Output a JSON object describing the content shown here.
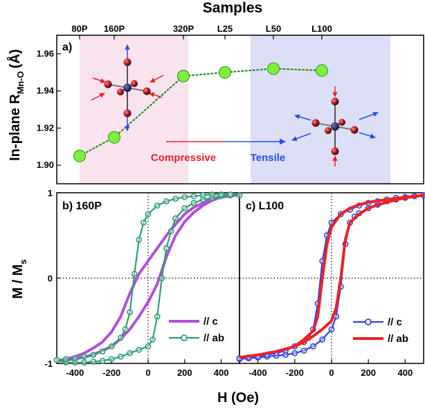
{
  "colors": {
    "compressive_region": "#f9e3ee",
    "tensile_region": "#dcdff6",
    "point_fill": "#7fef3f",
    "point_stroke": "#2f8f1f",
    "trend_line": "#2a8a2a",
    "purple": "#b050d8",
    "teal": "#2e9d72",
    "blue": "#3340e8",
    "red": "#ee2222",
    "compressive_text": "#e8202e",
    "tensile_text": "#2a4ae8",
    "atom_center": "#1d2a5a",
    "atom_outer": "#c0202a"
  },
  "chart_data": [
    {
      "id": "a",
      "type": "scatter",
      "panel_label": "a)",
      "title": "Samples",
      "ylabel_main": "In-plane R",
      "ylabel_sub": "Mn-O",
      "ylabel_unit": "(Å)",
      "categories": [
        "80P",
        "160P",
        "320P",
        "L25",
        "L50",
        "L100"
      ],
      "x_plot": [
        0.5,
        1.0,
        2.0,
        2.6,
        3.3,
        4.0
      ],
      "values": [
        1.905,
        1.915,
        1.948,
        1.95,
        1.952,
        1.951
      ],
      "ylim": [
        1.89,
        1.97
      ],
      "yticks": [
        "1.90",
        "1.92",
        "1.94",
        "1.96"
      ],
      "ytick_values": [
        1.9,
        1.92,
        1.94,
        1.96
      ],
      "compressive_label": "Compressive",
      "tensile_label": "Tensile"
    },
    {
      "id": "b",
      "type": "line",
      "panel_label": "b) 160P",
      "xlabel": "H (Oe)",
      "ylabel_main": "M / M",
      "ylabel_sub": "s",
      "xlim": [
        -500,
        500
      ],
      "ylim": [
        -1,
        1
      ],
      "xticks": [
        "-400",
        "-200",
        "0",
        "200",
        "400"
      ],
      "xtick_values": [
        -400,
        -200,
        0,
        200,
        400
      ],
      "yticks": [
        "-1",
        "0",
        "1"
      ],
      "ytick_values": [
        -1,
        0,
        1
      ],
      "series": [
        {
          "name": "// c",
          "marker": "none",
          "branch_up": [
            [
              -500,
              -0.97
            ],
            [
              -400,
              -0.95
            ],
            [
              -300,
              -0.9
            ],
            [
              -200,
              -0.8
            ],
            [
              -150,
              -0.71
            ],
            [
              -100,
              -0.6
            ],
            [
              -50,
              -0.45
            ],
            [
              0,
              -0.28
            ],
            [
              50,
              -0.07
            ],
            [
              100,
              0.25
            ],
            [
              150,
              0.5
            ],
            [
              200,
              0.66
            ],
            [
              250,
              0.77
            ],
            [
              300,
              0.85
            ],
            [
              350,
              0.91
            ],
            [
              400,
              0.95
            ],
            [
              450,
              0.97
            ],
            [
              500,
              0.98
            ]
          ],
          "branch_down": [
            [
              500,
              0.98
            ],
            [
              450,
              0.96
            ],
            [
              400,
              0.95
            ],
            [
              350,
              0.93
            ],
            [
              300,
              0.88
            ],
            [
              250,
              0.83
            ],
            [
              200,
              0.75
            ],
            [
              150,
              0.63
            ],
            [
              100,
              0.5
            ],
            [
              50,
              0.35
            ],
            [
              0,
              0.2
            ],
            [
              -50,
              0.05
            ],
            [
              -100,
              -0.18
            ],
            [
              -150,
              -0.45
            ],
            [
              -200,
              -0.63
            ],
            [
              -250,
              -0.75
            ],
            [
              -300,
              -0.82
            ],
            [
              -350,
              -0.88
            ],
            [
              -400,
              -0.92
            ],
            [
              -450,
              -0.95
            ],
            [
              -500,
              -0.97
            ]
          ]
        },
        {
          "name": "// ab",
          "marker": "circle",
          "branch_up": [
            [
              -500,
              -0.96
            ],
            [
              -450,
              -0.99
            ],
            [
              -400,
              -0.99
            ],
            [
              -350,
              -0.99
            ],
            [
              -300,
              -0.98
            ],
            [
              -250,
              -0.97
            ],
            [
              -200,
              -0.95
            ],
            [
              -150,
              -0.92
            ],
            [
              -100,
              -0.88
            ],
            [
              -50,
              -0.84
            ],
            [
              0,
              -0.8
            ],
            [
              25,
              -0.72
            ],
            [
              50,
              -0.45
            ],
            [
              75,
              0.0
            ],
            [
              100,
              0.35
            ],
            [
              125,
              0.55
            ],
            [
              150,
              0.7
            ],
            [
              200,
              0.82
            ],
            [
              250,
              0.88
            ],
            [
              300,
              0.92
            ],
            [
              350,
              0.94
            ],
            [
              400,
              0.96
            ],
            [
              450,
              0.97
            ],
            [
              500,
              0.97
            ]
          ],
          "branch_down": [
            [
              500,
              0.97
            ],
            [
              450,
              0.98
            ],
            [
              400,
              0.98
            ],
            [
              350,
              0.98
            ],
            [
              300,
              0.97
            ],
            [
              250,
              0.96
            ],
            [
              200,
              0.95
            ],
            [
              150,
              0.93
            ],
            [
              100,
              0.9
            ],
            [
              50,
              0.85
            ],
            [
              0,
              0.75
            ],
            [
              -25,
              0.65
            ],
            [
              -50,
              0.45
            ],
            [
              -75,
              0.05
            ],
            [
              -100,
              -0.4
            ],
            [
              -125,
              -0.6
            ],
            [
              -150,
              -0.7
            ],
            [
              -200,
              -0.8
            ],
            [
              -250,
              -0.86
            ],
            [
              -300,
              -0.9
            ],
            [
              -350,
              -0.92
            ],
            [
              -400,
              -0.94
            ],
            [
              -450,
              -0.95
            ],
            [
              -500,
              -0.96
            ]
          ]
        }
      ]
    },
    {
      "id": "c",
      "type": "line",
      "panel_label": "c) L100",
      "xlabel": "H (Oe)",
      "xlim": [
        -500,
        500
      ],
      "ylim": [
        -1,
        1
      ],
      "xticks": [
        "-400",
        "-200",
        "0",
        "200",
        "400"
      ],
      "xtick_values": [
        -400,
        -200,
        0,
        200,
        400
      ],
      "series": [
        {
          "name": "// c",
          "marker": "circle",
          "branch_up": [
            [
              -500,
              -0.95
            ],
            [
              -450,
              -0.94
            ],
            [
              -400,
              -0.93
            ],
            [
              -350,
              -0.92
            ],
            [
              -300,
              -0.91
            ],
            [
              -250,
              -0.9
            ],
            [
              -200,
              -0.88
            ],
            [
              -150,
              -0.85
            ],
            [
              -100,
              -0.8
            ],
            [
              -50,
              -0.72
            ],
            [
              0,
              -0.6
            ],
            [
              25,
              -0.45
            ],
            [
              50,
              -0.1
            ],
            [
              75,
              0.4
            ],
            [
              100,
              0.65
            ],
            [
              125,
              0.72
            ],
            [
              150,
              0.76
            ],
            [
              200,
              0.82
            ],
            [
              250,
              0.86
            ],
            [
              300,
              0.9
            ],
            [
              350,
              0.92
            ],
            [
              400,
              0.94
            ],
            [
              450,
              0.96
            ],
            [
              500,
              0.97
            ]
          ],
          "branch_down": [
            [
              500,
              0.97
            ],
            [
              450,
              0.96
            ],
            [
              400,
              0.95
            ],
            [
              350,
              0.94
            ],
            [
              300,
              0.92
            ],
            [
              250,
              0.9
            ],
            [
              200,
              0.88
            ],
            [
              150,
              0.85
            ],
            [
              100,
              0.8
            ],
            [
              50,
              0.75
            ],
            [
              0,
              0.65
            ],
            [
              -25,
              0.5
            ],
            [
              -50,
              0.2
            ],
            [
              -75,
              -0.3
            ],
            [
              -100,
              -0.6
            ],
            [
              -125,
              -0.7
            ],
            [
              -150,
              -0.75
            ],
            [
              -200,
              -0.8
            ],
            [
              -250,
              -0.85
            ],
            [
              -300,
              -0.88
            ],
            [
              -350,
              -0.9
            ],
            [
              -400,
              -0.92
            ],
            [
              -450,
              -0.93
            ],
            [
              -500,
              -0.94
            ]
          ]
        },
        {
          "name": "// ab",
          "marker": "none",
          "branch_up": [
            [
              -500,
              -0.93
            ],
            [
              -400,
              -0.9
            ],
            [
              -300,
              -0.86
            ],
            [
              -200,
              -0.8
            ],
            [
              -150,
              -0.75
            ],
            [
              -100,
              -0.68
            ],
            [
              -50,
              -0.6
            ],
            [
              0,
              -0.5
            ],
            [
              25,
              -0.35
            ],
            [
              50,
              0.0
            ],
            [
              75,
              0.45
            ],
            [
              100,
              0.65
            ],
            [
              150,
              0.75
            ],
            [
              200,
              0.82
            ],
            [
              300,
              0.89
            ],
            [
              400,
              0.94
            ],
            [
              500,
              0.97
            ]
          ],
          "branch_down": [
            [
              500,
              0.97
            ],
            [
              400,
              0.95
            ],
            [
              300,
              0.92
            ],
            [
              200,
              0.89
            ],
            [
              150,
              0.86
            ],
            [
              100,
              0.82
            ],
            [
              50,
              0.75
            ],
            [
              0,
              0.6
            ],
            [
              -25,
              0.4
            ],
            [
              -50,
              0.0
            ],
            [
              -75,
              -0.45
            ],
            [
              -100,
              -0.62
            ],
            [
              -150,
              -0.72
            ],
            [
              -200,
              -0.8
            ],
            [
              -300,
              -0.86
            ],
            [
              -400,
              -0.9
            ],
            [
              -500,
              -0.93
            ]
          ]
        }
      ]
    }
  ]
}
